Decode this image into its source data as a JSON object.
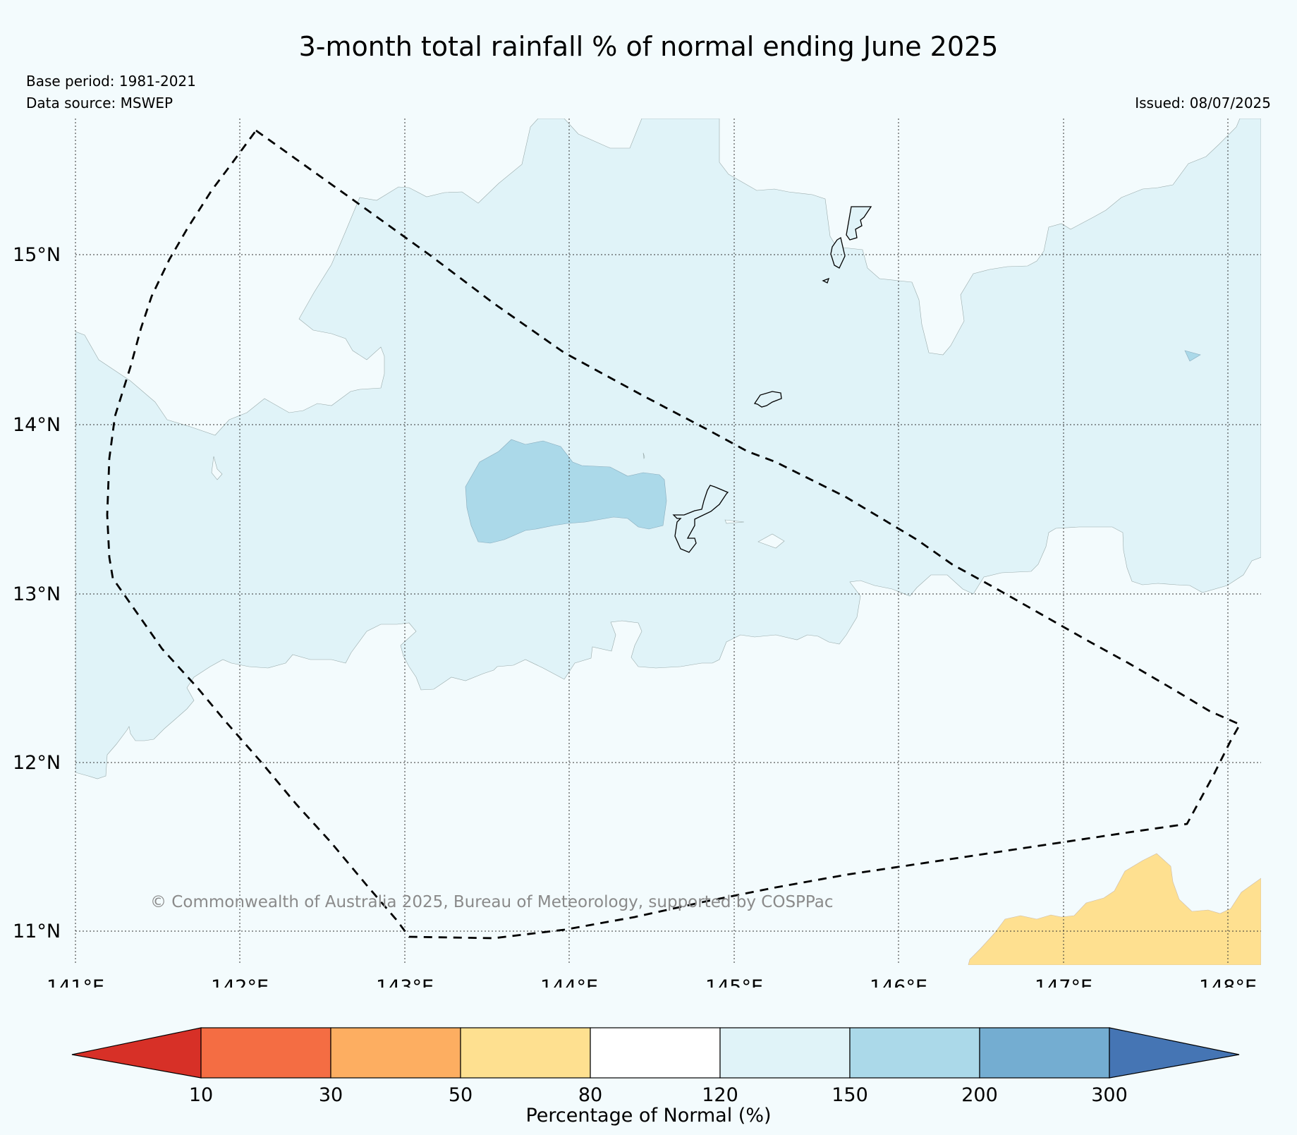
{
  "title": "3-month total rainfall % of normal ending June 2025",
  "base_period": "Base period: 1981-2021",
  "data_source": "Data source: MSWEP",
  "issued": "Issued: 08/07/2025",
  "copyright": "© Commonwealth of Australia 2025, Bureau of Meteorology, supported by COSPPac",
  "map": {
    "lon_ticks": [
      "141°E",
      "142°E",
      "143°E",
      "144°E",
      "145°E",
      "146°E",
      "147°E",
      "148°E"
    ],
    "lat_ticks": [
      "15°N",
      "14°N",
      "13°N",
      "12°N",
      "11°N"
    ],
    "lon_range": [
      141,
      148.2
    ],
    "lat_range": [
      10.8,
      15.8
    ],
    "gridlines": true
  },
  "colorbar": {
    "title": "Percentage of Normal (%)",
    "ticks": [
      "10",
      "30",
      "50",
      "80",
      "120",
      "150",
      "200",
      "300"
    ],
    "colors": [
      "#d73027",
      "#f46d43",
      "#fdae61",
      "#fee090",
      "#ffffff",
      "#e0f3f8",
      "#abd9e9",
      "#74add1",
      "#4575b4"
    ]
  },
  "legend_classes": {
    "near_normal": "#f3fbfd",
    "above_120": "#e0f3f8",
    "above_150": "#abd9e9",
    "below_80": "#fee090"
  }
}
